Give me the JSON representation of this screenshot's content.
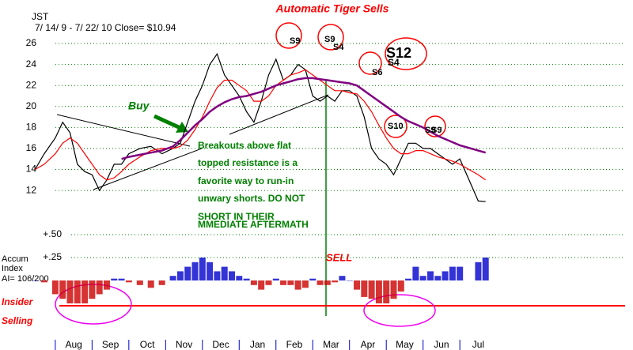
{
  "chart_data": [
    {
      "type": "line",
      "title": "Automatic Tiger Sells",
      "symbol": "JST",
      "subtitle": "7/ 14/ 9 -  7/ 22/ 10   Close= $10.94",
      "x": [
        -0.55,
        -0.3,
        0,
        0.2,
        0.4,
        0.6,
        0.8,
        1,
        1.2,
        1.4,
        1.6,
        1.8,
        2,
        2.3,
        2.6,
        2.9,
        3.2,
        3.4,
        3.6,
        3.8,
        4,
        4.2,
        4.4,
        4.6,
        4.8,
        5,
        5.2,
        5.4,
        5.6,
        5.8,
        6,
        6.2,
        6.4,
        6.6,
        6.8,
        7,
        7.2,
        7.4,
        7.6,
        7.8,
        8,
        8.2,
        8.4,
        8.6,
        8.8,
        9,
        9.2,
        9.4,
        9.6,
        9.8,
        10,
        10.2,
        10.4,
        10.6,
        10.8,
        11,
        11.5,
        11.7
      ],
      "series": [
        {
          "color": "#000000",
          "values": [
            14,
            15.5,
            17,
            18.5,
            17.5,
            14.5,
            13.8,
            13.5,
            12,
            13,
            14.5,
            14.5,
            15.5,
            16,
            16.2,
            15.5,
            16,
            16.5,
            18.5,
            20.5,
            22,
            24,
            25,
            23,
            22,
            21,
            19.5,
            18.5,
            20.5,
            23,
            24.5,
            22.5,
            23,
            24,
            23.5,
            21,
            20.5,
            21,
            20.5,
            21.5,
            21.5,
            21,
            19,
            16,
            15,
            14.5,
            13.5,
            15,
            16.5,
            16.5,
            16,
            16,
            15.5,
            15,
            14.5,
            15,
            11,
            10.94
          ]
        },
        {
          "color": "#ff0000",
          "values": [
            14,
            14.5,
            15.5,
            16.5,
            17,
            16.5,
            15.5,
            14.5,
            13.5,
            13,
            13.2,
            13.8,
            14.5,
            15.2,
            15.8,
            16,
            16,
            16.2,
            16.8,
            17.8,
            19,
            20.5,
            21.8,
            22.5,
            22.5,
            22,
            21.5,
            20.5,
            20.5,
            21,
            22,
            22.5,
            23,
            23.2,
            23.5,
            23,
            22.5,
            22,
            21.5,
            21.5,
            21.3,
            21.2,
            20.5,
            19.5,
            18.2,
            17,
            16,
            15.5,
            15.5,
            15.8,
            15.8,
            15.5,
            15.2,
            15,
            14.8,
            14.5,
            13.5,
            13
          ]
        },
        {
          "color": "#800080",
          "values": [
            null,
            null,
            null,
            null,
            null,
            null,
            null,
            null,
            null,
            null,
            null,
            15,
            15.2,
            15.4,
            15.6,
            15.8,
            16.2,
            16.8,
            17.5,
            18.2,
            18.8,
            19.5,
            20,
            20.4,
            20.7,
            20.9,
            21,
            21.2,
            21.4,
            21.7,
            22,
            22.2,
            22.4,
            22.6,
            22.7,
            22.7,
            22.6,
            22.5,
            22.4,
            22.3,
            22.2,
            22,
            21.5,
            21,
            20.5,
            20,
            19.5,
            19,
            18.6,
            18.3,
            18,
            17.6,
            17.2,
            16.9,
            16.6,
            16.3,
            15.8,
            15.6
          ]
        }
      ],
      "xlim": [
        -0.6,
        11.9
      ],
      "xticks": [
        {
          "value": 0.5,
          "label": "Aug"
        },
        {
          "value": 1.5,
          "label": "Sep"
        },
        {
          "value": 2.5,
          "label": "Oct"
        },
        {
          "value": 3.5,
          "label": "Nov"
        },
        {
          "value": 4.5,
          "label": "Dec"
        },
        {
          "value": 5.5,
          "label": "Jan"
        },
        {
          "value": 6.5,
          "label": "Feb"
        },
        {
          "value": 7.5,
          "label": "Mar"
        },
        {
          "value": 8.5,
          "label": "Apr"
        },
        {
          "value": 9.5,
          "label": "May"
        },
        {
          "value": 10.5,
          "label": "Jun"
        },
        {
          "value": 11.5,
          "label": "Jul"
        }
      ],
      "ylim": [
        10.6,
        26.8
      ],
      "yticks": [
        12,
        14,
        16,
        18,
        20,
        22,
        24,
        26
      ],
      "grid": true,
      "annotations": [
        "Buy",
        "Breakouts above flat",
        "topped resistance is a",
        "favorite way to run-in",
        "unwary shorts.  DO NOT",
        "SHORT IN THEIR",
        "MMEDIATE  AFTERMATH",
        "S9",
        "S9",
        "S4",
        "S6",
        "S4",
        "S12",
        "S10",
        "S9",
        "S9",
        "SELL",
        "Insider",
        "Selling"
      ]
    },
    {
      "type": "bar",
      "title": [
        "Accum",
        "Index"
      ],
      "subtitle": "AI= 106/200",
      "positive_color": "#0000cc",
      "negative_color": "#cc0000",
      "x": [
        -0.55,
        -0.3,
        0,
        0.2,
        0.4,
        0.6,
        0.8,
        1,
        1.2,
        1.4,
        1.6,
        1.8,
        2,
        2.3,
        2.6,
        2.9,
        3.2,
        3.4,
        3.6,
        3.8,
        4,
        4.2,
        4.4,
        4.6,
        4.8,
        5,
        5.2,
        5.4,
        5.6,
        5.8,
        6,
        6.2,
        6.4,
        6.6,
        6.8,
        7,
        7.2,
        7.4,
        7.6,
        7.8,
        8,
        8.2,
        8.4,
        8.6,
        8.8,
        9,
        9.2,
        9.4,
        9.6,
        9.8,
        10,
        10.2,
        10.4,
        10.6,
        10.8,
        11,
        11.5,
        11.7
      ],
      "values": [
        0,
        -0.02,
        -0.15,
        -0.2,
        -0.25,
        -0.25,
        -0.25,
        -0.2,
        -0.15,
        -0.1,
        0.02,
        0.02,
        -0.02,
        -0.05,
        -0.08,
        -0.05,
        0.05,
        0.1,
        0.15,
        0.2,
        0.25,
        0.2,
        0.1,
        0.15,
        0.1,
        0.05,
        0.02,
        -0.05,
        -0.1,
        -0.05,
        0.02,
        -0.05,
        -0.05,
        -0.1,
        -0.08,
        0.02,
        -0.05,
        -0.05,
        -0.02,
        0.05,
        0,
        -0.1,
        -0.18,
        -0.2,
        -0.25,
        -0.25,
        -0.2,
        -0.12,
        0.02,
        0.15,
        0.05,
        0.1,
        0.05,
        0.1,
        0.15,
        0.15,
        0.2,
        0.25
      ],
      "ylim": [
        -0.33,
        0.6
      ],
      "yticks": [
        {
          "value": 0.5,
          "label": "+.50"
        },
        {
          "value": 0.25,
          "label": "+.25"
        }
      ],
      "grid": true
    }
  ]
}
